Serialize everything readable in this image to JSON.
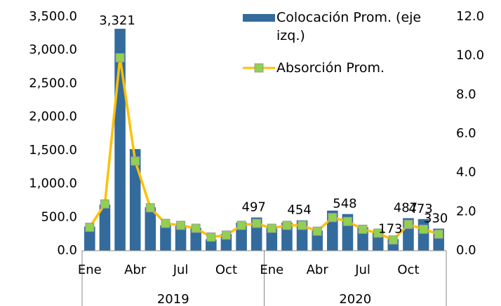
{
  "chart_data": {
    "type": "bar_line",
    "categories": [
      "Ene",
      null,
      null,
      "Abr",
      null,
      null,
      "Jul",
      null,
      null,
      "Oct",
      null,
      null,
      "Ene",
      null,
      null,
      "Abr",
      null,
      null,
      "Jul",
      null,
      null,
      "Oct",
      null,
      null
    ],
    "groups": [
      "2019",
      "2020"
    ],
    "series": [
      {
        "name": "Colocación Prom. (eje izq.)",
        "kind": "bar",
        "color": "#336b9c",
        "values": [
          360,
          690,
          3321,
          1520,
          650,
          380,
          370,
          340,
          170,
          250,
          420,
          497,
          370,
          420,
          454,
          300,
          600,
          548,
          350,
          300,
          173,
          487,
          473,
          330
        ],
        "value_labels": [
          null,
          null,
          "3,321",
          null,
          null,
          null,
          null,
          null,
          null,
          null,
          null,
          "497",
          null,
          null,
          "454",
          null,
          null,
          "548",
          null,
          null,
          "173",
          "487",
          "473",
          "330"
        ]
      },
      {
        "name": "Absorción Prom.",
        "kind": "line",
        "axis": "y2",
        "color": "#ffc000",
        "marker_color": "#92d050",
        "values": [
          1.2,
          2.4,
          9.9,
          4.6,
          2.2,
          1.4,
          1.3,
          1.15,
          0.7,
          0.8,
          1.3,
          1.4,
          1.15,
          1.3,
          1.3,
          1.0,
          1.7,
          1.5,
          1.1,
          0.9,
          0.55,
          1.35,
          1.1,
          0.85
        ]
      }
    ],
    "ylim": [
      0,
      3500
    ],
    "yticks": [
      {
        "value": 0,
        "label": "0.0"
      },
      {
        "value": 500,
        "label": "500.0"
      },
      {
        "value": 1000,
        "label": "1,000.0"
      },
      {
        "value": 1500,
        "label": "1,500.0"
      },
      {
        "value": 2000,
        "label": "2,000.0"
      },
      {
        "value": 2500,
        "label": "2,500.0"
      },
      {
        "value": 3000,
        "label": "3,000.0"
      },
      {
        "value": 3500,
        "label": "3,500.0"
      }
    ],
    "y2lim": [
      0,
      12
    ],
    "y2ticks": [
      {
        "value": 0,
        "label": "0.0"
      },
      {
        "value": 2,
        "label": "2.0"
      },
      {
        "value": 4,
        "label": "4.0"
      },
      {
        "value": 6,
        "label": "6.0"
      },
      {
        "value": 8,
        "label": "8.0"
      },
      {
        "value": 10,
        "label": "10.0"
      },
      {
        "value": 12,
        "label": "12.0"
      }
    ],
    "legend": "top-right"
  }
}
